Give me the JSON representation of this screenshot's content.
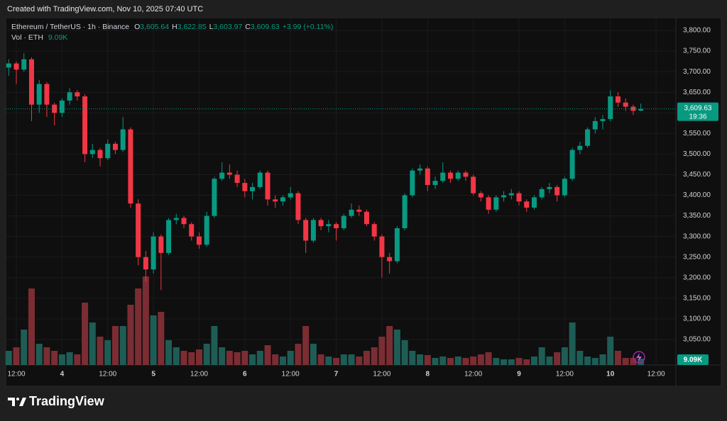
{
  "caption": "Created with TradingView.com, Nov 10, 2025 07:40 UTC",
  "brand": "TradingView",
  "chart_data": {
    "type": "candlestick",
    "header": {
      "symbol": "Ethereum / TetherUS · 1h · Binance",
      "fields": [
        {
          "key": "O",
          "label": "3,605.64"
        },
        {
          "key": "H",
          "label": "3,622.85"
        },
        {
          "key": "L",
          "label": "3,603.97"
        },
        {
          "key": "C",
          "label": "3,609.63"
        }
      ],
      "change": "+3.99 (+0.11%)",
      "volume_title": "Vol · ETH",
      "volume_label": "9.09K"
    },
    "open": [
      3710,
      3720,
      3705,
      3730,
      3620,
      3670,
      3620,
      3600,
      3630,
      3650,
      3640,
      3500,
      3510,
      3490,
      3525,
      3510,
      3560,
      3380,
      3250,
      3220,
      3300,
      3260,
      3340,
      3345,
      3330,
      3300,
      3280,
      3350,
      3440,
      3455,
      3450,
      3430,
      3410,
      3420,
      3455,
      3390,
      3385,
      3395,
      3405,
      3340,
      3290,
      3340,
      3325,
      3330,
      3320,
      3350,
      3365,
      3360,
      3330,
      3300,
      3250,
      3240,
      3320,
      3400,
      3460,
      3465,
      3425,
      3435,
      3455,
      3440,
      3455,
      3445,
      3405,
      3395,
      3365,
      3395,
      3400,
      3405,
      3385,
      3370,
      3395,
      3415,
      3420,
      3400,
      3440,
      3510,
      3520,
      3560,
      3580,
      3585,
      3640,
      3625,
      3615,
      3605.64
    ],
    "high": [
      3730,
      3725,
      3745,
      3735,
      3680,
      3675,
      3625,
      3635,
      3660,
      3655,
      3645,
      3525,
      3515,
      3535,
      3530,
      3590,
      3565,
      3390,
      3265,
      3310,
      3305,
      3345,
      3355,
      3350,
      3335,
      3310,
      3360,
      3445,
      3480,
      3475,
      3460,
      3440,
      3430,
      3460,
      3460,
      3400,
      3400,
      3420,
      3410,
      3345,
      3345,
      3345,
      3340,
      3335,
      3355,
      3380,
      3375,
      3365,
      3335,
      3305,
      3260,
      3325,
      3405,
      3465,
      3475,
      3470,
      3445,
      3480,
      3460,
      3460,
      3460,
      3450,
      3410,
      3400,
      3400,
      3410,
      3415,
      3410,
      3390,
      3400,
      3420,
      3430,
      3425,
      3445,
      3515,
      3530,
      3565,
      3590,
      3595,
      3655,
      3650,
      3635,
      3620,
      3622.85
    ],
    "low": [
      3690,
      3670,
      3700,
      3580,
      3600,
      3590,
      3570,
      3590,
      3620,
      3630,
      3480,
      3490,
      3470,
      3485,
      3500,
      3505,
      3370,
      3230,
      3190,
      3210,
      3170,
      3255,
      3330,
      3320,
      3290,
      3270,
      3275,
      3345,
      3435,
      3440,
      3420,
      3395,
      3390,
      3415,
      3375,
      3370,
      3375,
      3390,
      3330,
      3260,
      3285,
      3315,
      3310,
      3290,
      3315,
      3345,
      3350,
      3325,
      3290,
      3200,
      3210,
      3235,
      3315,
      3395,
      3450,
      3410,
      3415,
      3430,
      3430,
      3435,
      3435,
      3400,
      3385,
      3355,
      3360,
      3385,
      3390,
      3375,
      3360,
      3365,
      3390,
      3405,
      3385,
      3395,
      3435,
      3500,
      3515,
      3550,
      3560,
      3580,
      3615,
      3605,
      3595,
      3603.97
    ],
    "close": [
      3720,
      3705,
      3730,
      3620,
      3670,
      3620,
      3600,
      3630,
      3650,
      3640,
      3500,
      3510,
      3490,
      3525,
      3510,
      3560,
      3380,
      3250,
      3220,
      3300,
      3260,
      3340,
      3345,
      3330,
      3300,
      3280,
      3350,
      3440,
      3455,
      3450,
      3430,
      3410,
      3420,
      3455,
      3390,
      3385,
      3395,
      3405,
      3340,
      3290,
      3340,
      3325,
      3330,
      3320,
      3350,
      3365,
      3360,
      3330,
      3300,
      3250,
      3240,
      3320,
      3400,
      3460,
      3465,
      3425,
      3435,
      3455,
      3440,
      3455,
      3445,
      3405,
      3395,
      3365,
      3395,
      3400,
      3405,
      3385,
      3370,
      3395,
      3415,
      3420,
      3400,
      3440,
      3510,
      3520,
      3560,
      3580,
      3585,
      3640,
      3625,
      3615,
      3605,
      3609.63
    ],
    "volume": [
      20,
      25,
      50,
      108,
      30,
      25,
      20,
      15,
      18,
      15,
      88,
      60,
      40,
      35,
      55,
      55,
      85,
      108,
      125,
      70,
      75,
      35,
      25,
      20,
      18,
      22,
      30,
      55,
      25,
      20,
      18,
      20,
      15,
      20,
      28,
      15,
      12,
      20,
      30,
      55,
      30,
      15,
      12,
      10,
      15,
      15,
      12,
      20,
      25,
      40,
      55,
      50,
      35,
      20,
      15,
      14,
      10,
      12,
      10,
      12,
      10,
      12,
      15,
      18,
      10,
      8,
      8,
      10,
      8,
      12,
      25,
      12,
      18,
      25,
      60,
      20,
      12,
      10,
      15,
      40,
      20,
      10,
      10,
      9.09
    ],
    "up_color": "#089981",
    "down_color": "#f23645",
    "volume_up_color": "#1e5d56",
    "volume_down_color": "#7b2d33",
    "ylim": [
      2988,
      3831
    ],
    "yticks": [
      {
        "value": 3800,
        "label": "3,800.00"
      },
      {
        "value": 3750,
        "label": "3,750.00"
      },
      {
        "value": 3700,
        "label": "3,700.00"
      },
      {
        "value": 3650,
        "label": "3,650.00"
      },
      {
        "value": 3600,
        "label": "3,600.00"
      },
      {
        "value": 3550,
        "label": "3,550.00"
      },
      {
        "value": 3500,
        "label": "3,500.00"
      },
      {
        "value": 3450,
        "label": "3,450.00"
      },
      {
        "value": 3400,
        "label": "3,400.00"
      },
      {
        "value": 3350,
        "label": "3,350.00"
      },
      {
        "value": 3300,
        "label": "3,300.00"
      },
      {
        "value": 3250,
        "label": "3,250.00"
      },
      {
        "value": 3200,
        "label": "3,200.00"
      },
      {
        "value": 3150,
        "label": "3,150.00"
      },
      {
        "value": 3100,
        "label": "3,100.00"
      },
      {
        "value": 3050,
        "label": "3,050.00"
      }
    ],
    "xlim": [
      -0.4,
      87.6
    ],
    "xticks": [
      {
        "value": 1,
        "label": "12:00"
      },
      {
        "value": 7,
        "label": "4"
      },
      {
        "value": 13,
        "label": "12:00"
      },
      {
        "value": 19,
        "label": "5"
      },
      {
        "value": 25,
        "label": "12:00"
      },
      {
        "value": 31,
        "label": "6"
      },
      {
        "value": 37,
        "label": "12:00"
      },
      {
        "value": 43,
        "label": "7"
      },
      {
        "value": 49,
        "label": "12:00"
      },
      {
        "value": 55,
        "label": "8"
      },
      {
        "value": 61,
        "label": "12:00"
      },
      {
        "value": 67,
        "label": "9"
      },
      {
        "value": 73,
        "label": "12:00"
      },
      {
        "value": 79,
        "label": "10"
      },
      {
        "value": 85,
        "label": "12:00"
      }
    ],
    "vlim": [
      0,
      130
    ],
    "last_price": {
      "value": 3609.63,
      "label": "3,609.63"
    },
    "countdown": "19:36",
    "grid": true
  }
}
